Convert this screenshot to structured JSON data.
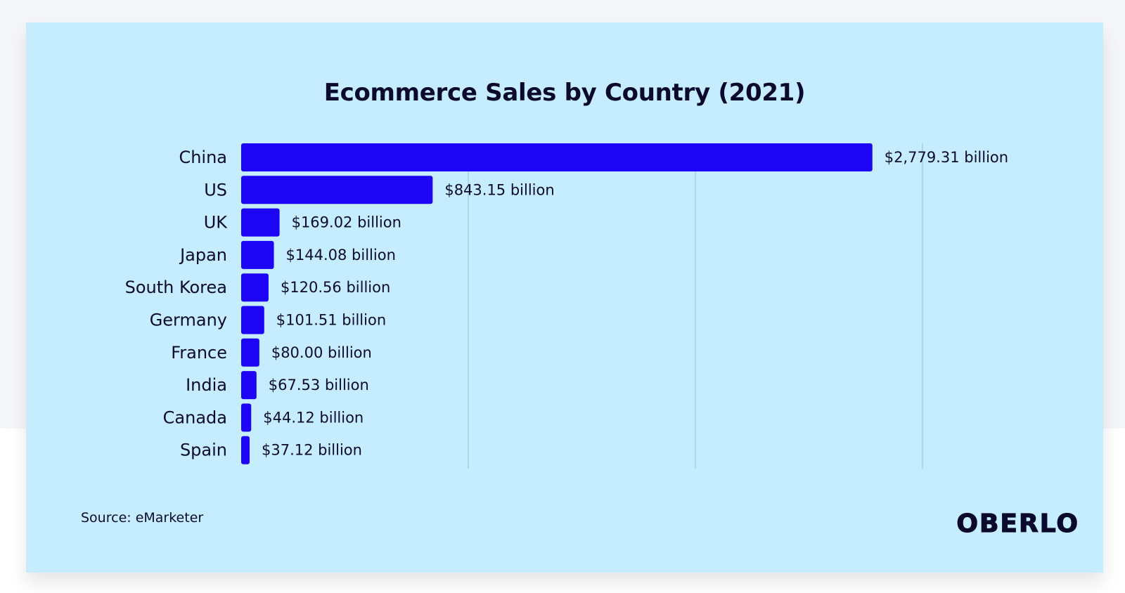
{
  "chart_data": {
    "type": "bar",
    "orientation": "horizontal",
    "title": "Ecommerce Sales by Country (2021)",
    "categories": [
      "China",
      "US",
      "UK",
      "Japan",
      "South Korea",
      "Germany",
      "France",
      "India",
      "Canada",
      "Spain"
    ],
    "values": [
      2779.31,
      843.15,
      169.02,
      144.08,
      120.56,
      101.51,
      80.0,
      67.53,
      44.12,
      37.12
    ],
    "value_labels": [
      "$2,779.31 billion",
      "$843.15 billion",
      "$169.02 billion",
      "$144.08 billion",
      "$120.56 billion",
      "$101.51 billion",
      "$80.00 billion",
      "$67.53 billion",
      "$44.12 billion",
      "$37.12 billion"
    ],
    "unit": "billion USD",
    "xlim": [
      0,
      3000
    ],
    "gridlines_x": [
      1000,
      2000,
      3000
    ],
    "grid": true,
    "bar_color": "#1d04f5",
    "source": "Source: eMarketer"
  },
  "colors": {
    "card_background": "#c5edfe",
    "page_background": "#f5f6f9",
    "text": "#0b0a2e",
    "gridline": "#a8cfe0"
  },
  "brand": {
    "logo_text": "OBERLO"
  }
}
